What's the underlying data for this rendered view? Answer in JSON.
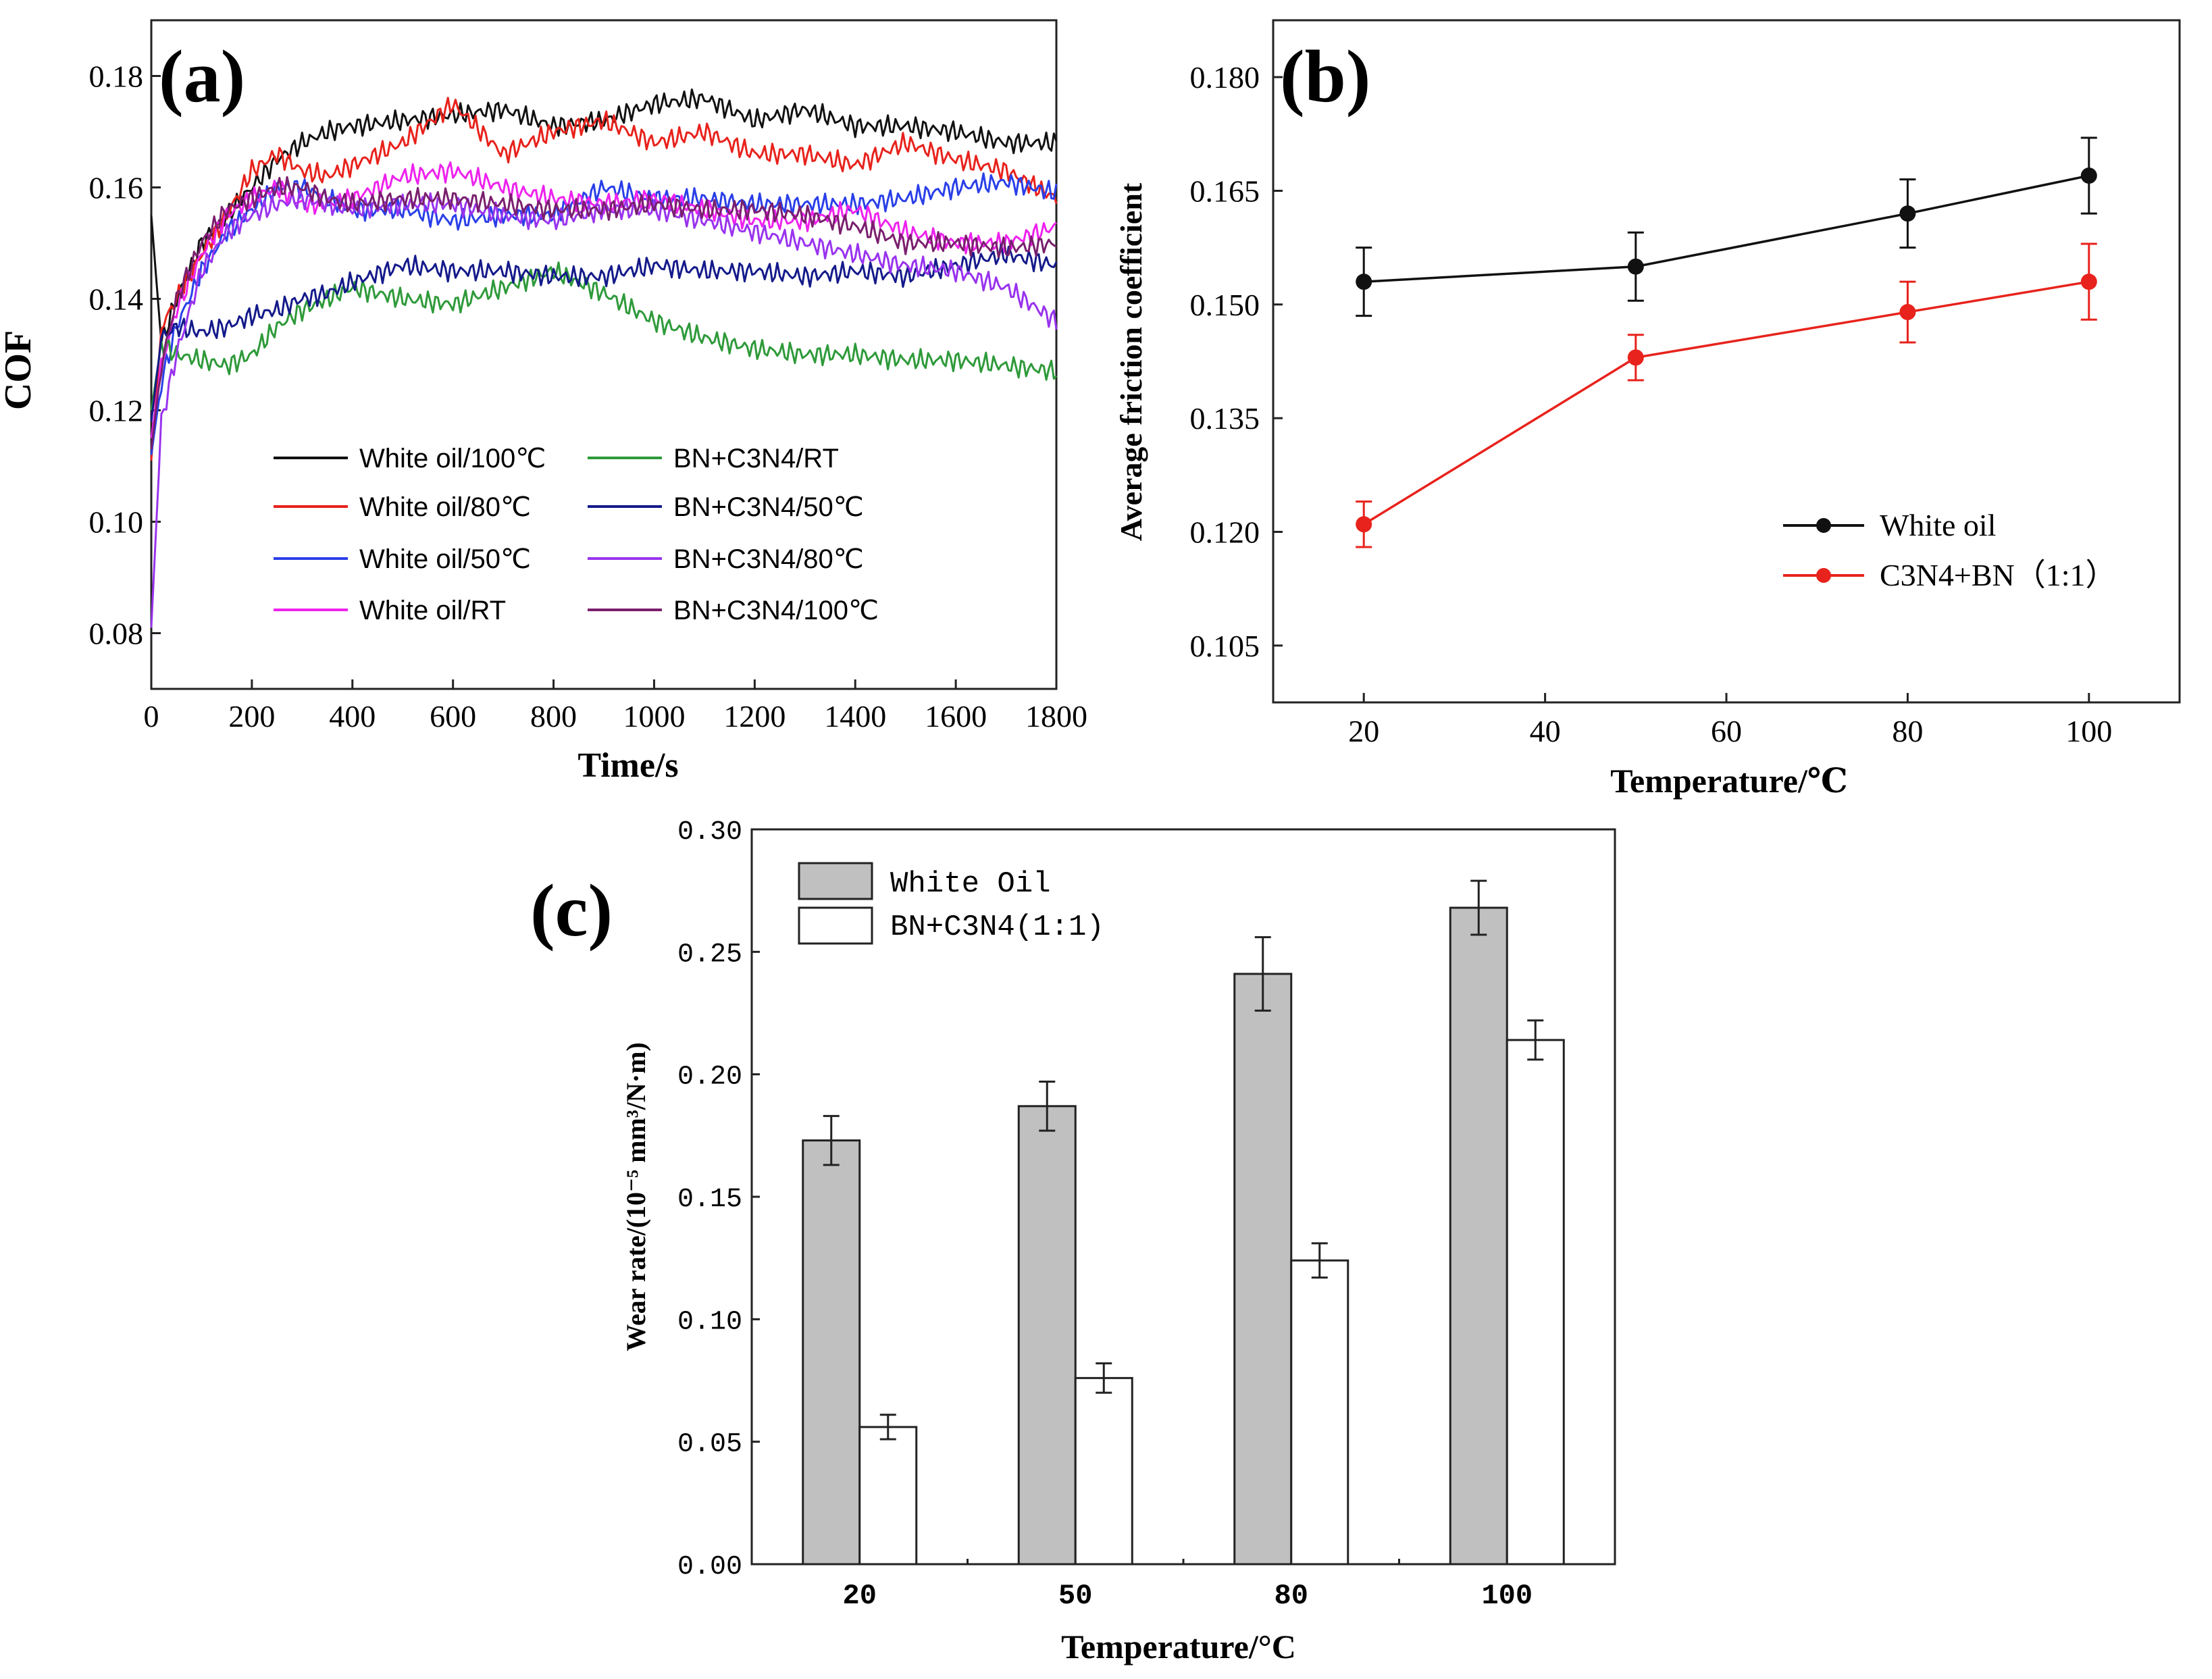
{
  "chart_data": [
    {
      "id": "a",
      "type": "line",
      "panel_label": "(a)",
      "xlabel": "Time/s",
      "ylabel": "COF",
      "xlim": [
        0,
        1800
      ],
      "ylim": [
        0.07,
        0.19
      ],
      "xticks": [
        "0",
        "200",
        "400",
        "600",
        "800",
        "1000",
        "1200",
        "1400",
        "1600",
        "1800"
      ],
      "yticks": [
        "0.08",
        "0.10",
        "0.12",
        "0.14",
        "0.16",
        "0.18"
      ],
      "x": [
        0,
        20,
        50,
        100,
        150,
        200,
        250,
        300,
        350,
        400,
        500,
        600,
        700,
        800,
        900,
        1000,
        1100,
        1200,
        1300,
        1400,
        1500,
        1600,
        1700,
        1800
      ],
      "series": [
        {
          "name": "White oil/100℃",
          "color": "#111111",
          "values": [
            0.155,
            0.132,
            0.14,
            0.15,
            0.155,
            0.16,
            0.165,
            0.168,
            0.17,
            0.171,
            0.172,
            0.173,
            0.174,
            0.171,
            0.172,
            0.175,
            0.176,
            0.172,
            0.174,
            0.171,
            0.171,
            0.17,
            0.168,
            0.168
          ]
        },
        {
          "name": "White oil/80℃",
          "color": "#e8221c",
          "values": [
            0.111,
            0.135,
            0.14,
            0.148,
            0.155,
            0.163,
            0.166,
            0.163,
            0.162,
            0.164,
            0.168,
            0.175,
            0.166,
            0.17,
            0.172,
            0.168,
            0.17,
            0.166,
            0.166,
            0.164,
            0.168,
            0.165,
            0.163,
            0.158
          ]
        },
        {
          "name": "White oil/50℃",
          "color": "#2a3fe8",
          "values": [
            0.112,
            0.125,
            0.135,
            0.145,
            0.152,
            0.156,
            0.16,
            0.16,
            0.158,
            0.156,
            0.156,
            0.154,
            0.155,
            0.155,
            0.16,
            0.158,
            0.158,
            0.157,
            0.157,
            0.157,
            0.158,
            0.16,
            0.161,
            0.159
          ]
        },
        {
          "name": "White oil/RT",
          "color": "#ee22ee",
          "values": [
            0.115,
            0.128,
            0.138,
            0.148,
            0.155,
            0.158,
            0.16,
            0.157,
            0.157,
            0.158,
            0.162,
            0.163,
            0.16,
            0.158,
            0.157,
            0.158,
            0.156,
            0.154,
            0.154,
            0.156,
            0.152,
            0.15,
            0.15,
            0.153
          ]
        },
        {
          "name": "BN+C3N4/RT",
          "color": "#2e9a3a",
          "values": [
            0.12,
            0.132,
            0.13,
            0.129,
            0.128,
            0.13,
            0.135,
            0.138,
            0.14,
            0.142,
            0.14,
            0.139,
            0.142,
            0.145,
            0.141,
            0.136,
            0.133,
            0.131,
            0.13,
            0.13,
            0.129,
            0.129,
            0.128,
            0.127
          ]
        },
        {
          "name": "BN+C3N4/50℃",
          "color": "#141a8a",
          "values": [
            0.118,
            0.133,
            0.135,
            0.134,
            0.135,
            0.137,
            0.138,
            0.14,
            0.141,
            0.143,
            0.146,
            0.145,
            0.145,
            0.144,
            0.144,
            0.146,
            0.145,
            0.145,
            0.144,
            0.145,
            0.144,
            0.146,
            0.148,
            0.146
          ]
        },
        {
          "name": "BN+C3N4/80℃",
          "color": "#9933ee",
          "values": [
            0.081,
            0.118,
            0.13,
            0.145,
            0.152,
            0.155,
            0.157,
            0.158,
            0.157,
            0.156,
            0.157,
            0.157,
            0.155,
            0.154,
            0.156,
            0.156,
            0.154,
            0.152,
            0.15,
            0.148,
            0.146,
            0.145,
            0.142,
            0.136
          ]
        },
        {
          "name": "BN+C3N4/100℃",
          "color": "#7a1f6e",
          "values": [
            0.113,
            0.128,
            0.14,
            0.15,
            0.156,
            0.158,
            0.16,
            0.16,
            0.158,
            0.157,
            0.158,
            0.158,
            0.157,
            0.156,
            0.156,
            0.157,
            0.156,
            0.156,
            0.155,
            0.153,
            0.15,
            0.15,
            0.149,
            0.15
          ]
        }
      ],
      "legend": {
        "position": "bottom-center",
        "columns": 2
      }
    },
    {
      "id": "b",
      "type": "line",
      "panel_label": "(b)",
      "xlabel": "Temperature/℃",
      "ylabel": "Average friction coefficient",
      "xlim": [
        10,
        110
      ],
      "ylim": [
        0.0975,
        0.1875
      ],
      "xticks": [
        "20",
        "40",
        "60",
        "80",
        "100"
      ],
      "yticks": [
        "0.105",
        "0.120",
        "0.135",
        "0.150",
        "0.165",
        "0.180"
      ],
      "x": [
        20,
        50,
        80,
        100
      ],
      "series": [
        {
          "name": "White oil",
          "color": "#111111",
          "values": [
            0.153,
            0.155,
            0.162,
            0.167
          ],
          "errors": [
            0.0045,
            0.0045,
            0.0045,
            0.005
          ]
        },
        {
          "name": "C3N4+BN（1:1）",
          "color": "#e8221c",
          "values": [
            0.121,
            0.143,
            0.149,
            0.153
          ],
          "errors": [
            0.003,
            0.003,
            0.004,
            0.005
          ]
        }
      ],
      "legend": {
        "position": "bottom-right"
      }
    },
    {
      "id": "c",
      "type": "bar",
      "panel_label": "(c)",
      "xlabel": "Temperature/°C",
      "ylabel": "Wear rate/(10⁻⁵ mm³/N·m)",
      "ylim": [
        0.0,
        0.3
      ],
      "yticks": [
        "0.00",
        "0.05",
        "0.10",
        "0.15",
        "0.20",
        "0.25",
        "0.30"
      ],
      "categories": [
        "20",
        "50",
        "80",
        "100"
      ],
      "series": [
        {
          "name": "White Oil",
          "color": "#c0c0c0",
          "values": [
            0.173,
            0.187,
            0.241,
            0.268
          ],
          "errors": [
            0.01,
            0.01,
            0.015,
            0.011
          ]
        },
        {
          "name": "BN+C3N4(1:1)",
          "color": "#ffffff",
          "values": [
            0.056,
            0.076,
            0.124,
            0.214
          ],
          "errors": [
            0.005,
            0.006,
            0.007,
            0.008
          ]
        }
      ],
      "legend": {
        "position": "top-left"
      }
    }
  ]
}
